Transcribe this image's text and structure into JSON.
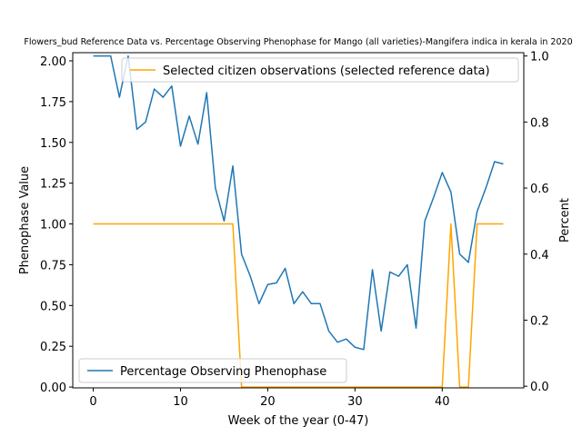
{
  "chart_data": {
    "type": "line",
    "title": "Flowers_bud Reference Data vs. Percentage Observing Phenophase for Mango (all varieties)-Mangifera indica in kerala in 2020",
    "xlabel": "Week of the year (0-47)",
    "ylabel_left": "Phenophase Value",
    "ylabel_right": "Percent",
    "xlim": [
      -2.35,
      49.35
    ],
    "ylim_left": [
      -0.005,
      2.05
    ],
    "ylim_right": [
      -0.005,
      1.01
    ],
    "x_ticks": [
      0,
      10,
      20,
      30,
      40
    ],
    "x_tick_labels": [
      "0",
      "10",
      "20",
      "30",
      "40"
    ],
    "y_left_ticks": [
      0.0,
      0.25,
      0.5,
      0.75,
      1.0,
      1.25,
      1.5,
      1.75,
      2.0
    ],
    "y_left_tick_labels": [
      "0.00",
      "0.25",
      "0.50",
      "0.75",
      "1.00",
      "1.25",
      "1.50",
      "1.75",
      "2.00"
    ],
    "y_right_ticks": [
      0.0,
      0.2,
      0.4,
      0.6,
      0.8,
      1.0
    ],
    "y_right_tick_labels": [
      "0.0",
      "0.2",
      "0.4",
      "0.6",
      "0.8",
      "1.0"
    ],
    "grid": false,
    "series": [
      {
        "name": "Selected citizen observations (selected reference data)",
        "axis": "left",
        "color": "#ffa500",
        "x": [
          0,
          1,
          2,
          3,
          4,
          5,
          6,
          7,
          8,
          9,
          10,
          11,
          12,
          13,
          14,
          15,
          16,
          17,
          18,
          19,
          20,
          21,
          22,
          23,
          24,
          25,
          26,
          27,
          28,
          29,
          30,
          31,
          32,
          33,
          34,
          35,
          36,
          37,
          38,
          39,
          40,
          41,
          42,
          43,
          44,
          45,
          46,
          47
        ],
        "y": [
          1,
          1,
          1,
          1,
          1,
          1,
          1,
          1,
          1,
          1,
          1,
          1,
          1,
          1,
          1,
          1,
          1,
          0,
          0,
          0,
          0,
          0,
          0,
          0,
          0,
          0,
          0,
          0,
          0,
          0,
          0,
          0,
          0,
          0,
          0,
          0,
          0,
          0,
          0,
          0,
          0,
          1,
          0,
          0,
          1,
          1,
          1,
          1
        ]
      },
      {
        "name": "Percentage Observing Phenophase",
        "axis": "right",
        "color": "#1f77b4",
        "x": [
          0,
          1,
          2,
          3,
          4,
          5,
          6,
          7,
          8,
          9,
          10,
          11,
          12,
          13,
          14,
          15,
          16,
          17,
          18,
          19,
          20,
          21,
          22,
          23,
          24,
          25,
          26,
          27,
          28,
          29,
          30,
          31,
          32,
          33,
          34,
          35,
          36,
          37,
          38,
          39,
          40,
          41,
          42,
          43,
          44,
          45,
          46,
          47
        ],
        "y": [
          1.0,
          1.0,
          1.0,
          0.875,
          1.0,
          0.778,
          0.8,
          0.9,
          0.875,
          0.909,
          0.727,
          0.818,
          0.733,
          0.889,
          0.6,
          0.5,
          0.667,
          0.4,
          0.333,
          0.25,
          0.308,
          0.313,
          0.357,
          0.25,
          0.286,
          0.25,
          0.25,
          0.167,
          0.133,
          0.143,
          0.118,
          0.111,
          0.353,
          0.167,
          0.346,
          0.333,
          0.368,
          0.176,
          0.5,
          0.571,
          0.647,
          0.588,
          0.4,
          0.375,
          0.529,
          0.6,
          0.68,
          0.673
        ]
      }
    ],
    "legends": [
      {
        "placement": "top-right",
        "entries": [
          "Selected citizen observations (selected reference data)"
        ]
      },
      {
        "placement": "lower-left",
        "entries": [
          "Percentage Observing Phenophase"
        ]
      }
    ]
  }
}
